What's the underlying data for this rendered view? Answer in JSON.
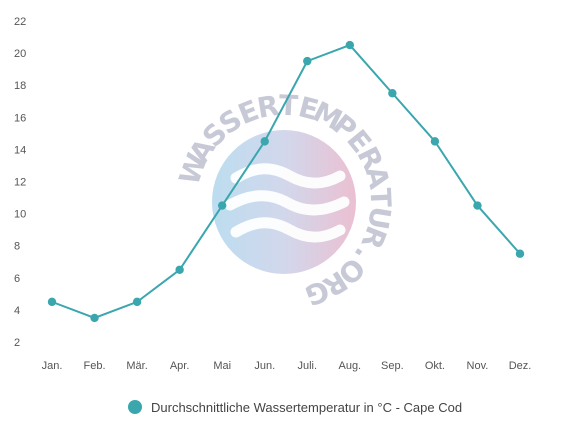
{
  "chart_data": {
    "type": "line",
    "categories": [
      "Jan.",
      "Feb.",
      "Mär.",
      "Apr.",
      "Mai",
      "Jun.",
      "Juli.",
      "Aug.",
      "Sep.",
      "Okt.",
      "Nov.",
      "Dez."
    ],
    "series": [
      {
        "name": "Durchschnittliche Wassertemperatur in °C - Cape Cod",
        "values": [
          4.5,
          3.5,
          4.5,
          6.5,
          10.5,
          14.5,
          19.5,
          20.5,
          17.5,
          14.5,
          10.5,
          7.5
        ]
      }
    ],
    "yticks": [
      "22",
      "20",
      "18",
      "16",
      "14",
      "12",
      "10",
      "8",
      "6",
      "4",
      "2"
    ],
    "ylim": [
      2,
      22
    ],
    "grid": false,
    "legend_position": "bottom",
    "series_color": "#3aa6ad"
  },
  "watermark": {
    "text": "WASSERTEMPERATUR.ORG"
  }
}
